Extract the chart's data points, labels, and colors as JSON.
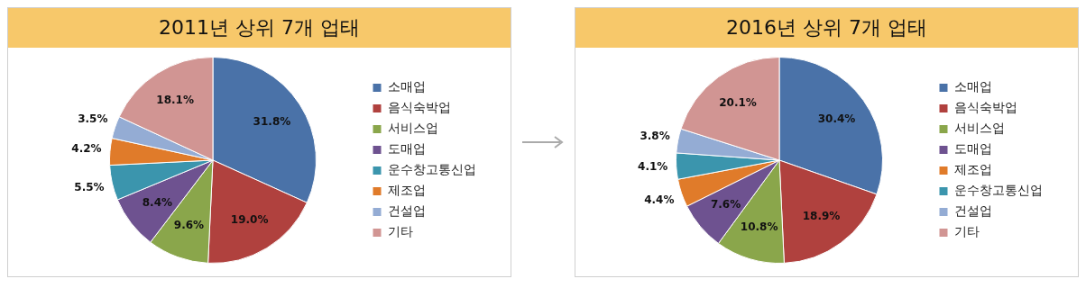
{
  "chart_data": [
    {
      "type": "pie",
      "title": "2011년 상위 7개 업태",
      "categories": [
        "소매업",
        "음식숙박업",
        "서비스업",
        "도매업",
        "운수창고통신업",
        "제조업",
        "건설업",
        "기타"
      ],
      "values": [
        31.8,
        19.0,
        9.6,
        8.4,
        5.5,
        4.2,
        3.5,
        18.1
      ],
      "value_labels": [
        "31.8%",
        "19.0%",
        "9.6%",
        "8.4%",
        "5.5%",
        "4.2%",
        "3.5%",
        "18.1%"
      ],
      "colors": [
        "#4a72a8",
        "#b0413e",
        "#8aa64b",
        "#6e5290",
        "#3b95ad",
        "#e07b2a",
        "#94acd4",
        "#d19593"
      ],
      "legend": "right"
    },
    {
      "type": "pie",
      "title": "2016년 상위 7개 업태",
      "categories": [
        "소매업",
        "음식숙박업",
        "서비스업",
        "도매업",
        "제조업",
        "운수창고통신업",
        "건설업",
        "기타"
      ],
      "values": [
        30.4,
        18.9,
        10.8,
        7.6,
        4.4,
        4.1,
        3.8,
        20.1
      ],
      "value_labels": [
        "30.4%",
        "18.9%",
        "10.8%",
        "7.6%",
        "4.4%",
        "4.1%",
        "3.8%",
        "20.1%"
      ],
      "colors": [
        "#4a72a8",
        "#b0413e",
        "#8aa64b",
        "#6e5290",
        "#e07b2a",
        "#3b95ad",
        "#94acd4",
        "#d19593"
      ],
      "legend": "right"
    }
  ]
}
